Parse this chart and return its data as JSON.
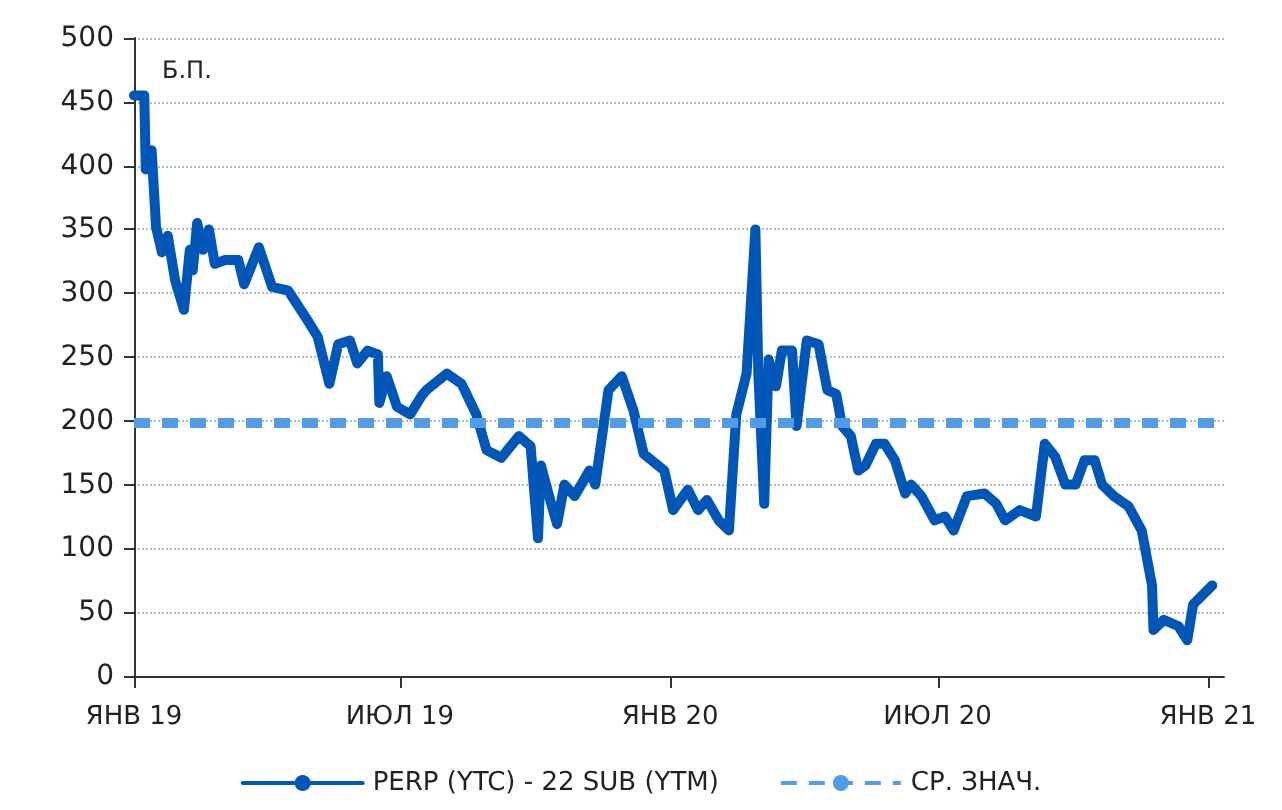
{
  "chart_data": {
    "type": "line",
    "ylabel": "Б.П.",
    "x": [
      "2019-01-01",
      "2019-01-08",
      "2019-01-09",
      "2019-01-13",
      "2019-01-16",
      "2019-01-20",
      "2019-01-24",
      "2019-01-29",
      "2019-02-04",
      "2019-02-08",
      "2019-02-10",
      "2019-02-13",
      "2019-02-17",
      "2019-02-21",
      "2019-02-25",
      "2019-03-04",
      "2019-03-13",
      "2019-03-17",
      "2019-03-27",
      "2019-04-05",
      "2019-04-16",
      "2019-04-29",
      "2019-05-06",
      "2019-05-14",
      "2019-05-20",
      "2019-05-28",
      "2019-06-02",
      "2019-06-09",
      "2019-06-16",
      "2019-06-17",
      "2019-06-22",
      "2019-06-29",
      "2019-07-08",
      "2019-07-16",
      "2019-07-19",
      "2019-08-02",
      "2019-08-12",
      "2019-08-22",
      "2019-08-29",
      "2019-09-08",
      "2019-09-20",
      "2019-09-28",
      "2019-10-03",
      "2019-10-05",
      "2019-10-12",
      "2019-10-16",
      "2019-10-21",
      "2019-10-28",
      "2019-11-07",
      "2019-11-11",
      "2019-11-20",
      "2019-11-29",
      "2019-12-07",
      "2019-12-14",
      "2019-12-28",
      "2020-01-03",
      "2020-01-13",
      "2020-01-20",
      "2020-01-26",
      "2020-02-03",
      "2020-02-10",
      "2020-02-15",
      "2020-02-22",
      "2020-02-28",
      "2020-03-01",
      "2020-03-05",
      "2020-03-08",
      "2020-03-13",
      "2020-03-17",
      "2020-03-24",
      "2020-03-27",
      "2020-04-03",
      "2020-04-11",
      "2020-04-17",
      "2020-04-23",
      "2020-04-27",
      "2020-05-03",
      "2020-05-08",
      "2020-05-13",
      "2020-05-20",
      "2020-05-26",
      "2020-06-02",
      "2020-06-09",
      "2020-06-13",
      "2020-06-20",
      "2020-06-29",
      "2020-07-06",
      "2020-07-12",
      "2020-07-21",
      "2020-08-02",
      "2020-08-10",
      "2020-08-16",
      "2020-08-26",
      "2020-09-06",
      "2020-09-12",
      "2020-09-19",
      "2020-09-26",
      "2020-10-03",
      "2020-10-09",
      "2020-10-16",
      "2020-10-21",
      "2020-10-29",
      "2020-11-08",
      "2020-11-17",
      "2020-11-24",
      "2020-11-25",
      "2020-12-02",
      "2020-12-12",
      "2020-12-18",
      "2020-12-22",
      "2021-01-04"
    ],
    "series": [
      {
        "name": "PERP (YTC) - 22 SUB (YTM)",
        "color": "#0057b8",
        "values": [
          455,
          455,
          397,
          412,
          352,
          332,
          345,
          310,
          287,
          334,
          318,
          355,
          334,
          350,
          323,
          326,
          326,
          307,
          336,
          305,
          302,
          279,
          266,
          229,
          260,
          263,
          245,
          255,
          252,
          214,
          235,
          211,
          205,
          220,
          224,
          237,
          229,
          205,
          177,
          171,
          188,
          180,
          108,
          165,
          135,
          119,
          150,
          141,
          161,
          150,
          224,
          235,
          208,
          174,
          161,
          130,
          146,
          130,
          138,
          122,
          114,
          205,
          237,
          350,
          237,
          135,
          248,
          227,
          255,
          255,
          196,
          263,
          260,
          224,
          221,
          196,
          188,
          161,
          165,
          182,
          182,
          169,
          143,
          150,
          141,
          122,
          125,
          114,
          141,
          143,
          135,
          122,
          130,
          125,
          182,
          172,
          150,
          150,
          169,
          169,
          150,
          141,
          133,
          114,
          71,
          36,
          44,
          39,
          28,
          56,
          71
        ]
      }
    ],
    "ref_lines": [
      {
        "axis": "y",
        "value": 198,
        "label": "СР. ЗНАЧ.",
        "color": "#4f9de6",
        "line_style": "dashed"
      }
    ],
    "xlim": [
      "2019-01-01",
      "2021-01-12"
    ],
    "xticks": [
      {
        "value": "2019-01-01",
        "label": "ЯНВ 19"
      },
      {
        "value": "2019-07-01",
        "label": "ИЮЛ 19"
      },
      {
        "value": "2020-01-01",
        "label": "ЯНВ 20"
      },
      {
        "value": "2020-07-01",
        "label": "ИЮЛ 20"
      },
      {
        "value": "2021-01-01",
        "label": "ЯНВ 21"
      }
    ],
    "ylim": [
      0,
      500
    ],
    "yticks": [
      0,
      50,
      100,
      150,
      200,
      250,
      300,
      350,
      400,
      450,
      500
    ],
    "grid": "y",
    "legend": "bottom",
    "marker": "none",
    "line_style": "solid"
  }
}
